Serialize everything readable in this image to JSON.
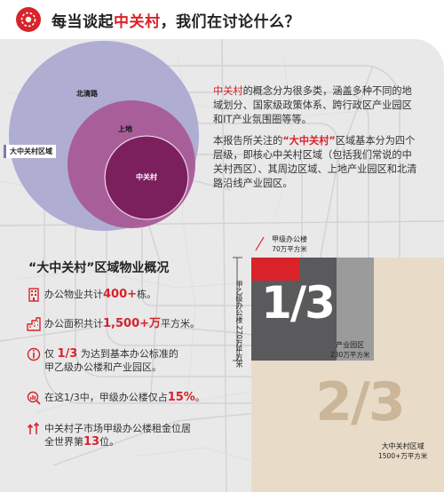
{
  "header": {
    "title_prefix": "每当谈起",
    "title_highlight": "中关村",
    "title_suffix": "，我们在讨论什么？",
    "logo_icon": "red-circle-logo-icon",
    "accent_color": "#d8232a"
  },
  "circles": {
    "outer_label": "北清路",
    "middle_label": "上地",
    "inner_label": "中关村",
    "region_tag": "大中关村区域",
    "colors": [
      "#a9a6cf",
      "#a85b96",
      "#7c1f5d"
    ]
  },
  "description": {
    "p1_highlight": "中关村",
    "p1_text": "的概念分为很多类，涵盖多种不同的地域划分、国家级政策体系、跨行政区产业园区和IT产业氛围圈等等。",
    "p2_prefix": "本报告所关注的",
    "p2_highlight": "“大中关村”",
    "p2_text": "区域基本分为四个层级，即核心中关村区域（包括我们常说的中关村西区）、其周边区域、上地产业园区和北清路沿线产业园区。"
  },
  "overview": {
    "title": "“大中关村”区域物业概况",
    "stats": [
      {
        "icon": "building-icon",
        "prefix": "办公物业共计",
        "highlight": "400+",
        "suffix": "栋。"
      },
      {
        "icon": "area-icon",
        "prefix": "办公面积共计",
        "highlight": "1,500+万",
        "suffix": "平方米。"
      },
      {
        "icon": "fraction-icon",
        "prefix": "仅 ",
        "highlight": "1/3",
        "suffix": " 为达到基本办公标准的",
        "line2": "甲乙级办公楼和产业园区。"
      },
      {
        "icon": "magnifier-chart-icon",
        "prefix": "在这1/3中，甲级办公楼仅占",
        "highlight": "15%",
        "suffix": "。"
      },
      {
        "icon": "rent-up-icon",
        "prefix": "中关村子市场甲级办公楼租金位居",
        "line2_prefix": "全世界第",
        "highlight": "13",
        "suffix": "位。"
      }
    ]
  },
  "chart_data": {
    "type": "treemap",
    "total_label": "大中关村区域",
    "total_value": "1500+万平方米",
    "blocks": [
      {
        "name": "甲级办公楼",
        "value": "70万平方米"
      },
      {
        "name": "甲乙级办公楼",
        "value": "270万平方米"
      },
      {
        "name": "产业园区",
        "value": "230万平方米"
      }
    ],
    "fraction_labels": [
      "1/3",
      "2/3"
    ],
    "colors": {
      "grade_a": "#d8232a",
      "grade_ab": "#5a5a5c",
      "park": "#9b9b9c",
      "total": "#e8dcc8"
    }
  }
}
